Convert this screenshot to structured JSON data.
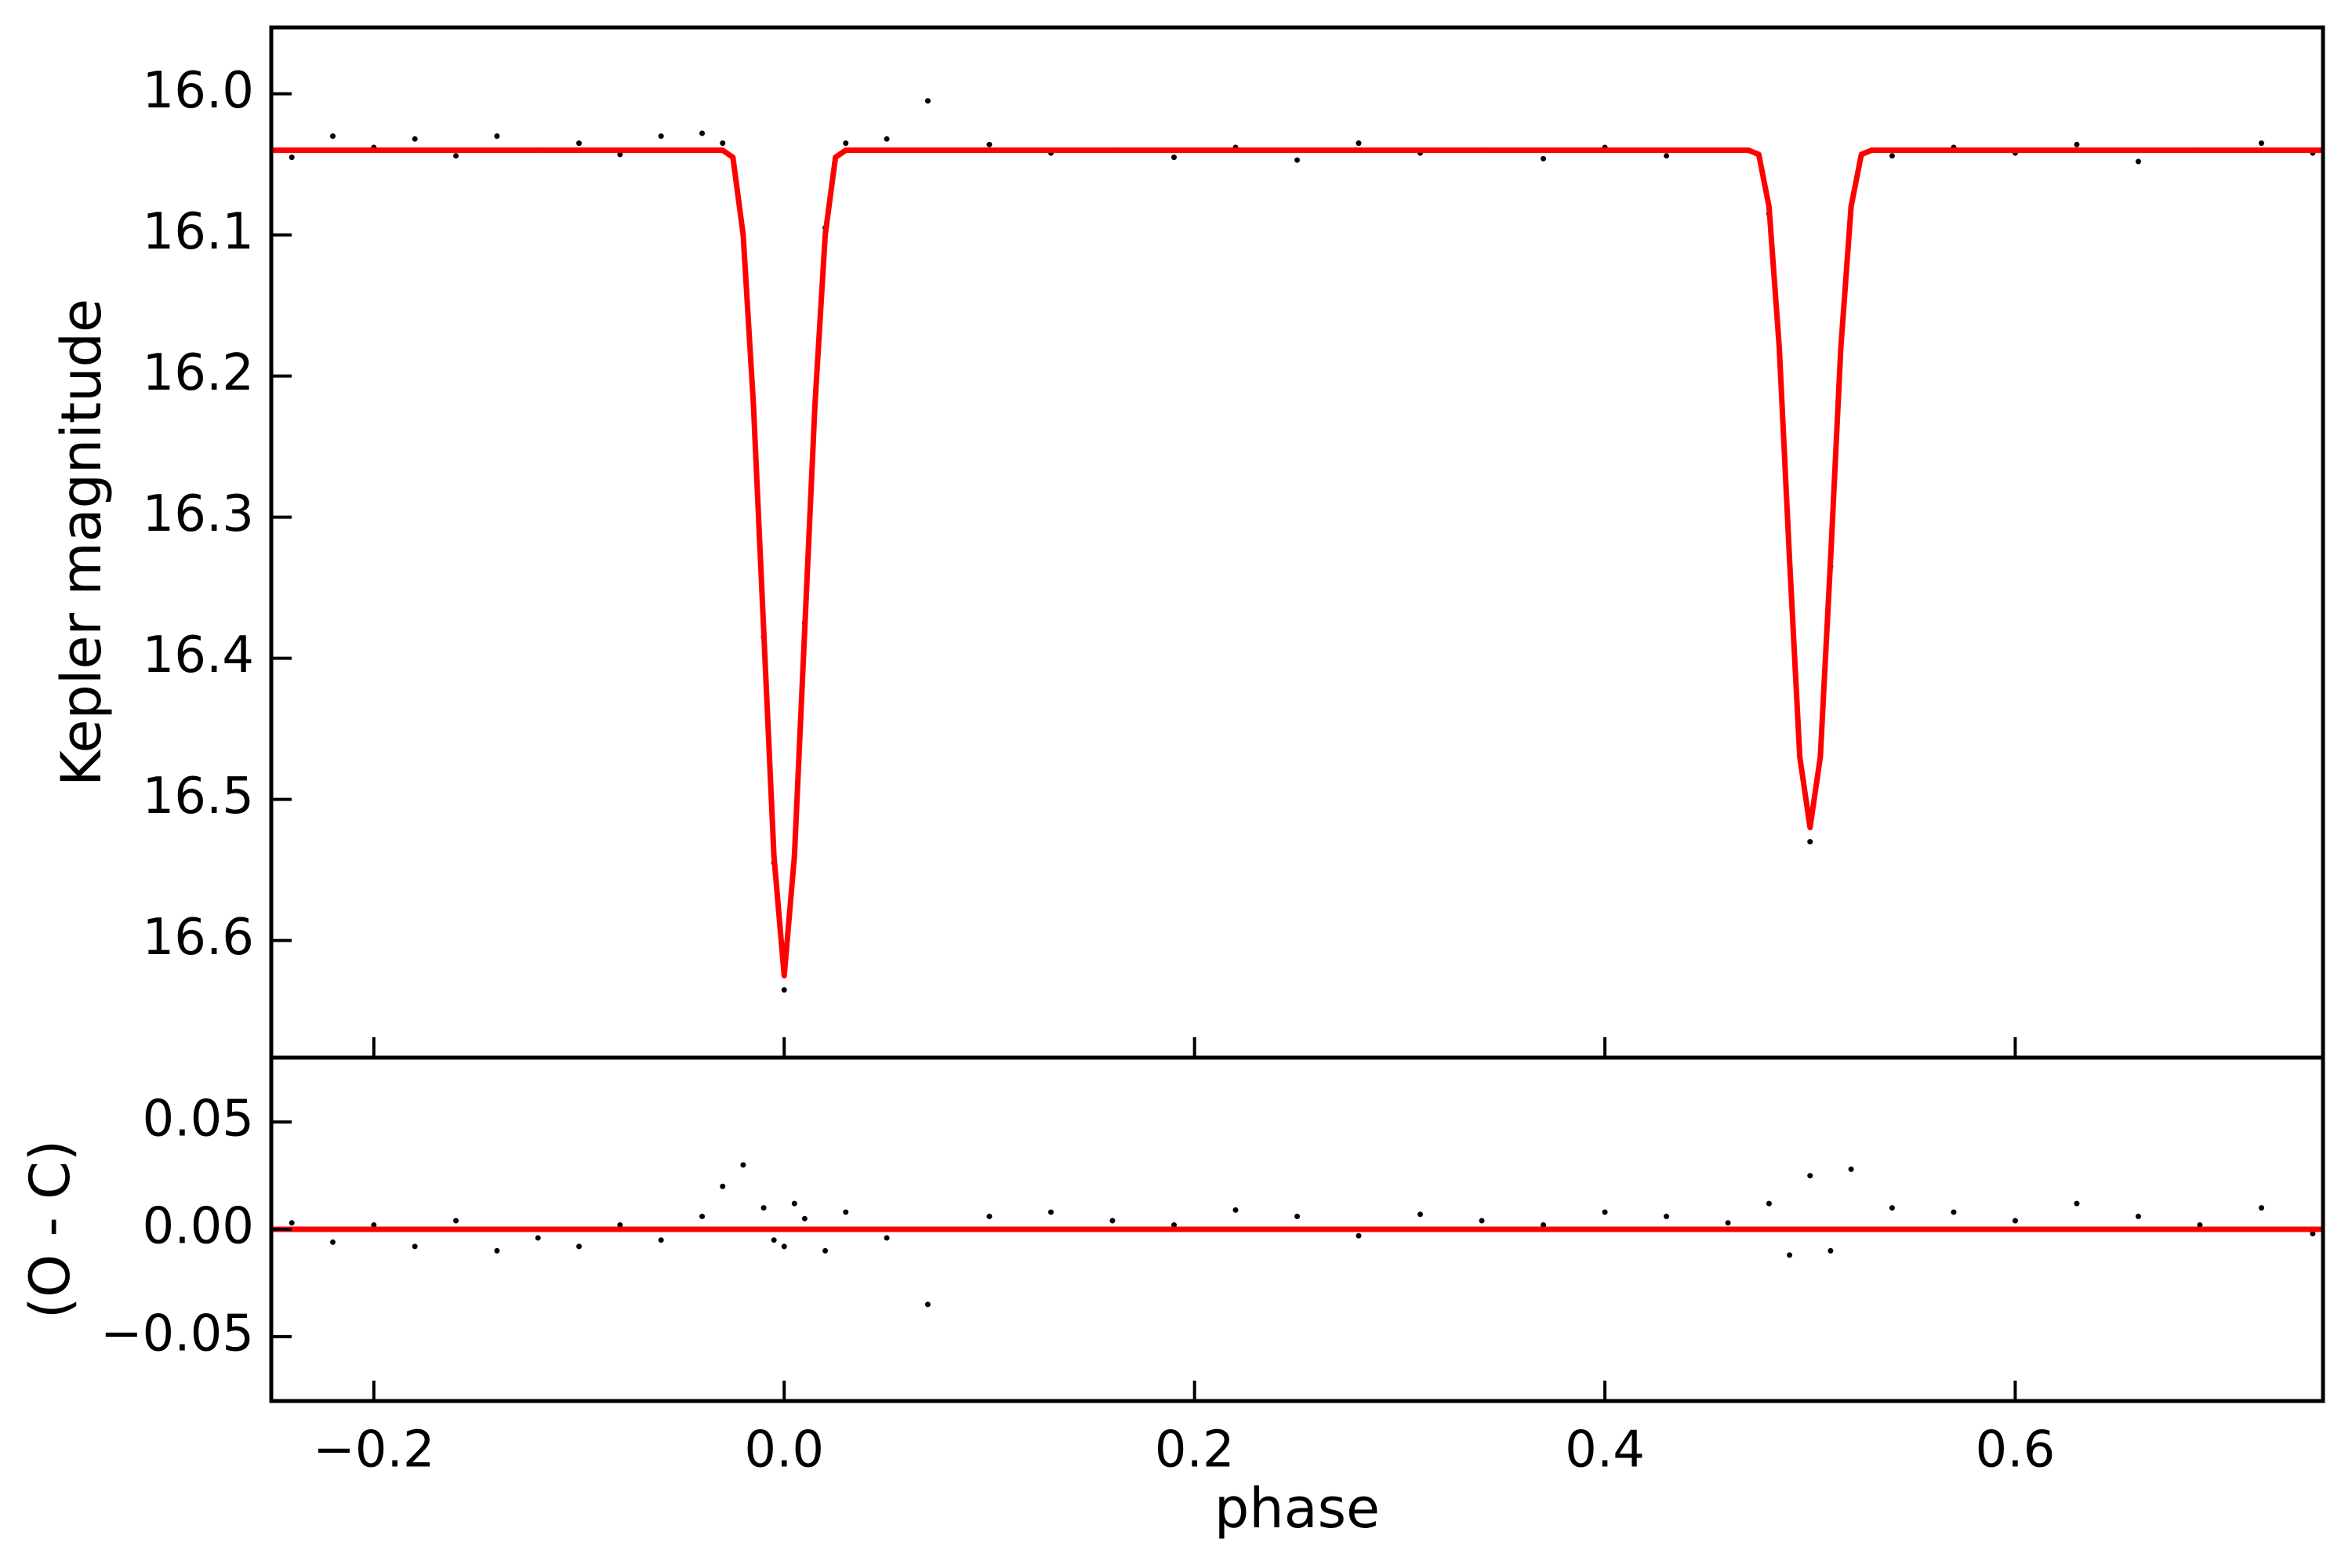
{
  "chart_data": [
    {
      "type": "scatter",
      "ylabel": "Kepler magnitude",
      "xlim": [
        -0.25,
        0.75
      ],
      "ylim": [
        15.953,
        16.683
      ],
      "y_inverted": true,
      "xticks": [
        -0.2,
        0,
        0.2,
        0.4,
        0.6
      ],
      "xtick_labels": false,
      "yticks": [
        {
          "value": 16,
          "label": "16.0"
        },
        16.1,
        16.2,
        16.3,
        16.4,
        16.5,
        16.6
      ],
      "series": [
        {
          "mode": "markers",
          "color": "#000000",
          "x": [
            -0.24,
            -0.22,
            -0.2,
            -0.18,
            -0.16,
            -0.14,
            -0.12,
            -0.1,
            -0.08,
            -0.06,
            -0.04,
            -0.03,
            -0.02,
            -0.01,
            -0.005,
            0,
            0.005,
            0.01,
            0.02,
            0.03,
            0.05,
            0.07,
            0.1,
            0.13,
            0.16,
            0.19,
            0.22,
            0.25,
            0.28,
            0.31,
            0.34,
            0.37,
            0.4,
            0.43,
            0.46,
            0.48,
            0.49,
            0.5,
            0.51,
            0.52,
            0.54,
            0.57,
            0.6,
            0.63,
            0.66,
            0.69,
            0.72,
            0.745
          ],
          "values": [
            16.045,
            16.03,
            16.038,
            16.032,
            16.044,
            16.03,
            16.04,
            16.035,
            16.043,
            16.03,
            16.028,
            16.035,
            16.1,
            16.385,
            16.545,
            16.635,
            16.54,
            16.375,
            16.095,
            16.035,
            16.032,
            16.005,
            16.036,
            16.042,
            16.04,
            16.045,
            16.038,
            16.047,
            16.035,
            16.042,
            16.04,
            16.046,
            16.038,
            16.044,
            16.04,
            16.085,
            16.33,
            16.53,
            16.335,
            16.08,
            16.044,
            16.038,
            16.042,
            16.036,
            16.048,
            16.04,
            16.035,
            16.042
          ]
        },
        {
          "mode": "line",
          "color": "#ff0000",
          "x": [
            -0.25,
            -0.03,
            -0.025,
            -0.02,
            -0.015,
            -0.01,
            -0.005,
            0,
            0.005,
            0.01,
            0.015,
            0.02,
            0.025,
            0.03,
            0.47,
            0.475,
            0.48,
            0.485,
            0.49,
            0.495,
            0.5,
            0.505,
            0.51,
            0.515,
            0.52,
            0.525,
            0.53,
            0.75
          ],
          "values": [
            16.04,
            16.04,
            16.045,
            16.1,
            16.22,
            16.38,
            16.54,
            16.625,
            16.54,
            16.38,
            16.22,
            16.1,
            16.045,
            16.04,
            16.04,
            16.043,
            16.08,
            16.18,
            16.33,
            16.47,
            16.52,
            16.47,
            16.33,
            16.18,
            16.08,
            16.043,
            16.04,
            16.04
          ]
        }
      ]
    },
    {
      "type": "scatter",
      "ylabel": "(O - C)",
      "xlabel": "phase",
      "xlim": [
        -0.25,
        0.75
      ],
      "ylim": [
        -0.08,
        0.08
      ],
      "xticks": [
        {
          "value": -0.2,
          "label": "−0.2"
        },
        {
          "value": 0,
          "label": "0.0"
        },
        0.2,
        0.4,
        0.6
      ],
      "xtick_labels": true,
      "yticks": [
        0.05,
        {
          "value": 0,
          "label": "0.00"
        },
        {
          "value": -0.05,
          "label": "−0.05"
        }
      ],
      "series": [
        {
          "mode": "markers",
          "color": "#000000",
          "x": [
            -0.24,
            -0.22,
            -0.2,
            -0.18,
            -0.16,
            -0.14,
            -0.12,
            -0.1,
            -0.08,
            -0.06,
            -0.04,
            -0.03,
            -0.02,
            -0.01,
            -0.005,
            0,
            0.005,
            0.01,
            0.02,
            0.03,
            0.05,
            0.07,
            0.1,
            0.13,
            0.16,
            0.19,
            0.22,
            0.25,
            0.28,
            0.31,
            0.34,
            0.37,
            0.4,
            0.43,
            0.46,
            0.48,
            0.49,
            0.5,
            0.51,
            0.52,
            0.54,
            0.57,
            0.6,
            0.63,
            0.66,
            0.69,
            0.72,
            0.745
          ],
          "values": [
            0.003,
            -0.006,
            0.002,
            -0.008,
            0.004,
            -0.01,
            -0.004,
            -0.008,
            0.002,
            -0.005,
            0.006,
            0.02,
            0.03,
            0.01,
            -0.005,
            -0.008,
            0.012,
            0.005,
            -0.01,
            0.008,
            -0.004,
            -0.035,
            0.006,
            0.008,
            0.004,
            0.002,
            0.009,
            0.006,
            -0.003,
            0.007,
            0.004,
            0.002,
            0.008,
            0.006,
            0.003,
            0.012,
            -0.012,
            0.025,
            -0.01,
            0.028,
            0.01,
            0.008,
            0.004,
            0.012,
            0.006,
            0.002,
            0.01,
            -0.002
          ]
        },
        {
          "mode": "line",
          "color": "#ff0000",
          "x": [
            -0.25,
            0.75
          ],
          "values": [
            0,
            0
          ]
        }
      ]
    }
  ]
}
